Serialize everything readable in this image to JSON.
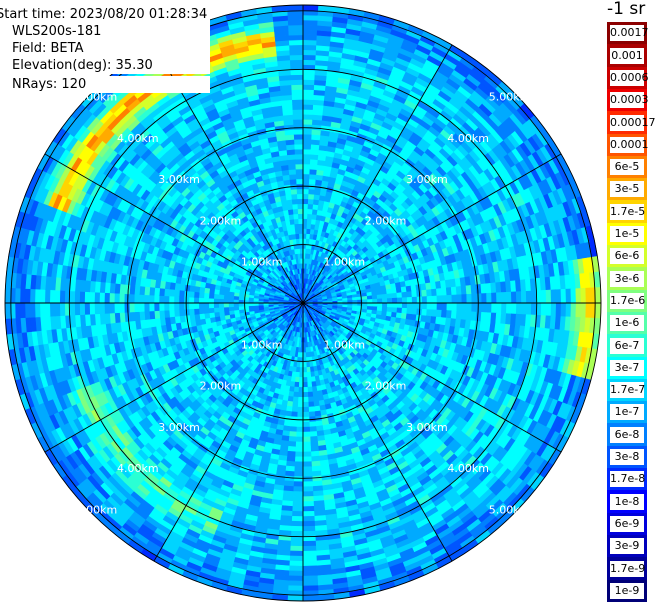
{
  "header": {
    "start_time": "Start time: 2023/08/20 01:28:34",
    "instrument": "WLS200s-181",
    "field": "Field: BETA",
    "elevation": "Elevation(deg): 35.30",
    "nrays": "NRays: 120"
  },
  "colorbar": {
    "units": "-1 sr",
    "labels": [
      "0.0017",
      "0.001",
      "0.0006",
      "0.0003",
      "0.00017",
      "0.0001",
      "6e-5",
      "3e-5",
      "1.7e-5",
      "1e-5",
      "6e-6",
      "3e-6",
      "1.7e-6",
      "1e-6",
      "6e-7",
      "3e-7",
      "1.7e-7",
      "1e-7",
      "6e-8",
      "3e-8",
      "1.7e-8",
      "1e-8",
      "6e-9",
      "3e-9",
      "1.7e-9",
      "1e-9"
    ],
    "colors": [
      "#8b0000",
      "#aa0000",
      "#cc0000",
      "#ee0000",
      "#ff2a00",
      "#ff5500",
      "#ff8000",
      "#ffaa00",
      "#ffd400",
      "#ffff00",
      "#d4ff2a",
      "#aaff55",
      "#7fff80",
      "#55ffaa",
      "#2affd4",
      "#00ffff",
      "#00d4ff",
      "#00aaff",
      "#0080ff",
      "#0055ff",
      "#002aff",
      "#0000ff",
      "#0000dd",
      "#0000bb",
      "#000099",
      "#000077"
    ]
  },
  "chart_data": {
    "type": "heatmap",
    "projection": "polar PPI",
    "field": "BETA",
    "rays": 120,
    "range_rings_km": [
      1,
      2,
      3,
      4,
      5
    ],
    "ring_labels": [
      "1.00km",
      "2.00km",
      "3.00km",
      "4.00km",
      "5.00km"
    ],
    "max_range_km": 5.1,
    "spokes_deg": [
      0,
      30,
      60,
      90,
      120,
      150,
      180,
      210,
      240,
      270,
      300,
      330
    ],
    "value_scale": "log",
    "value_range": [
      1e-09,
      0.0017
    ],
    "background_value": 1.7e-07,
    "features": [
      {
        "name": "high-backscatter arc NW",
        "range_km": 4.5,
        "azimuth_deg": [
          290,
          355
        ],
        "value": 3e-05
      },
      {
        "name": "elevated arc E",
        "range_km": 4.9,
        "azimuth_deg": [
          80,
          105
        ],
        "value": 1e-05
      },
      {
        "name": "enhanced band",
        "range_km": 4.0,
        "azimuth_deg": [
          200,
          250
        ],
        "value": 1e-06
      },
      {
        "name": "near-field low",
        "range_km": 0.6,
        "azimuth_deg": [
          0,
          360
        ],
        "value": 3e-08
      }
    ]
  }
}
